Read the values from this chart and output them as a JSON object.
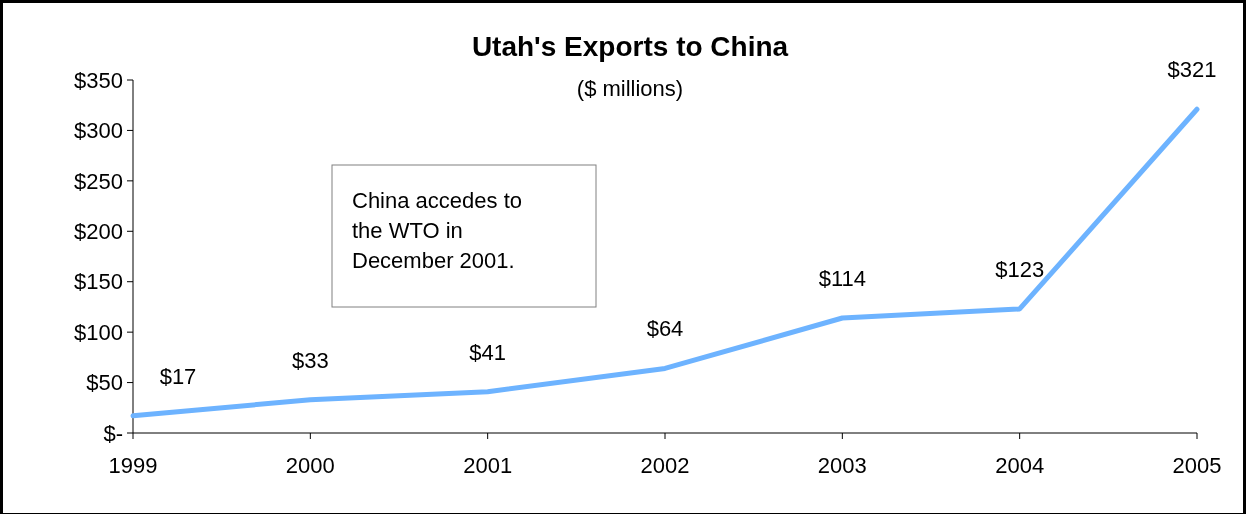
{
  "chart_data": {
    "type": "line",
    "title": "Utah's Exports to China",
    "subtitle": "($ millions)",
    "categories": [
      "1999",
      "2000",
      "2001",
      "2002",
      "2003",
      "2004",
      "2005"
    ],
    "series": [
      {
        "color": "#6db3ff",
        "values": [
          17,
          33,
          41,
          64,
          114,
          123,
          321
        ],
        "value_labels": [
          "$17",
          "$33",
          "$41",
          "$64",
          "$114",
          "$123",
          "$321"
        ]
      }
    ],
    "ylim": [
      0,
      350
    ],
    "yticks": [
      {
        "value": 0,
        "label": "$-"
      },
      {
        "value": 50,
        "label": "$50"
      },
      {
        "value": 100,
        "label": "$100"
      },
      {
        "value": 150,
        "label": "$150"
      },
      {
        "value": 200,
        "label": "$200"
      },
      {
        "value": 250,
        "label": "$250"
      },
      {
        "value": 300,
        "label": "$300"
      },
      {
        "value": 350,
        "label": "$350"
      }
    ],
    "annotations": [
      "China accedes to the WTO in December 2001."
    ],
    "grid": false,
    "marker": "none",
    "line_style": "solid"
  }
}
